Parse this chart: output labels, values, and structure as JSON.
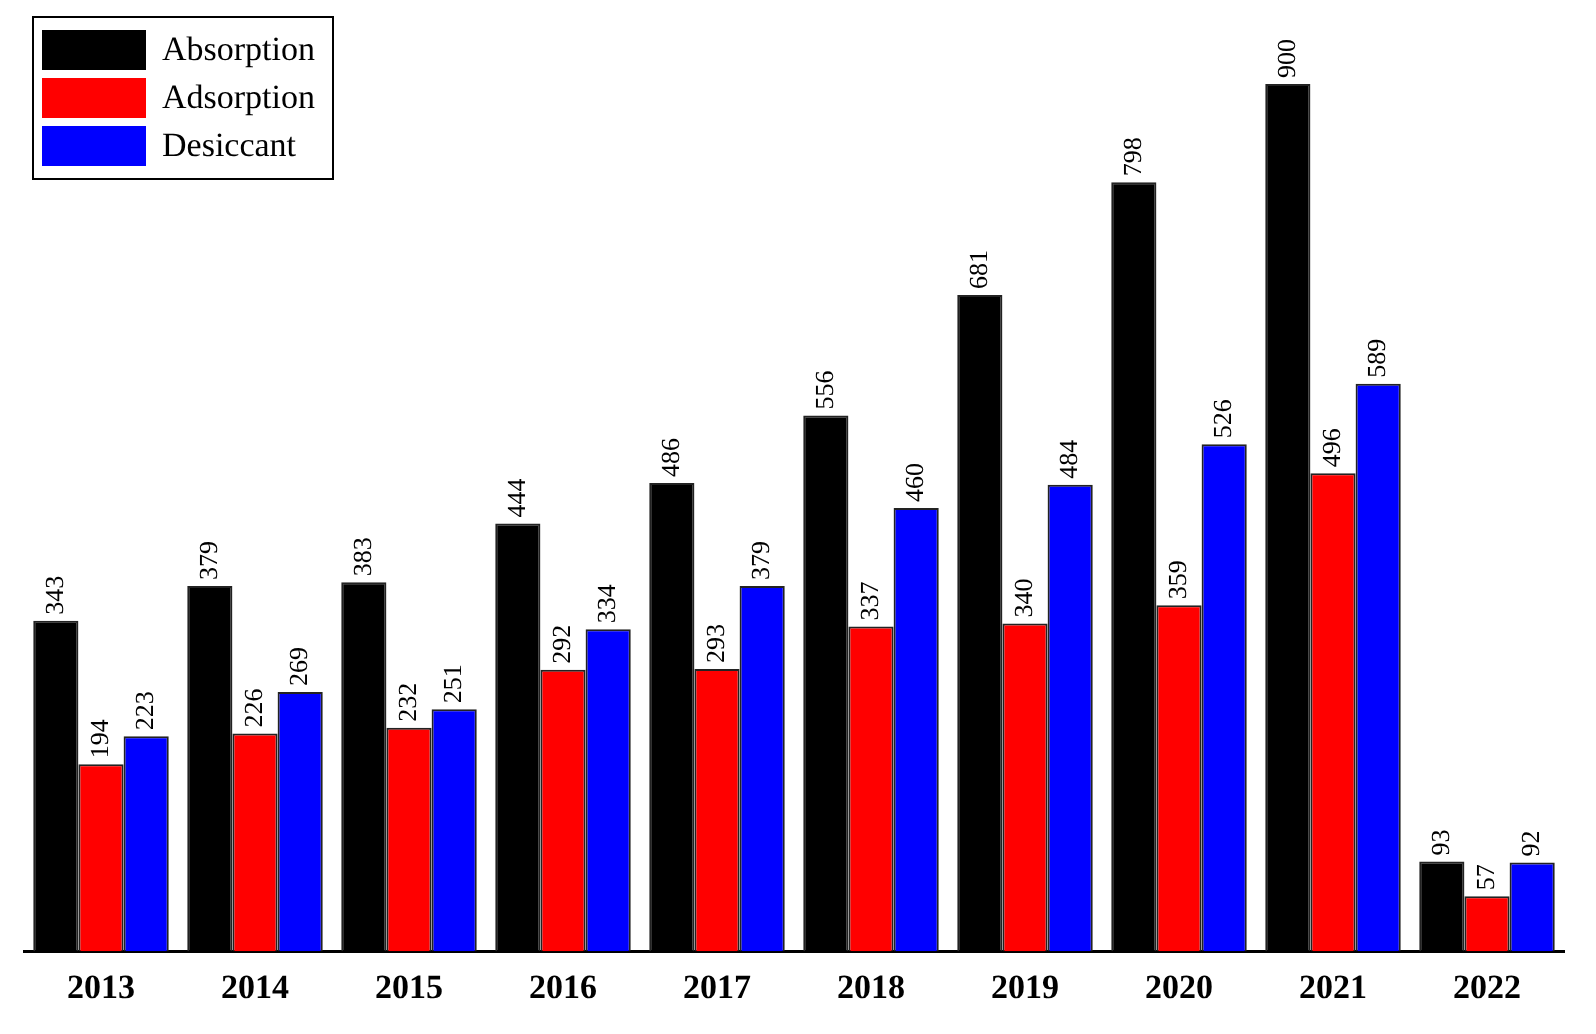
{
  "chart_data": {
    "type": "bar",
    "categories": [
      "2013",
      "2014",
      "2015",
      "2016",
      "2017",
      "2018",
      "2019",
      "2020",
      "2021",
      "2022"
    ],
    "series": [
      {
        "name": "Absorption",
        "color": "#000000",
        "values": [
          343,
          379,
          383,
          444,
          486,
          556,
          681,
          798,
          900,
          93
        ]
      },
      {
        "name": "Adsorption",
        "color": "#ff0000",
        "values": [
          194,
          226,
          232,
          292,
          293,
          337,
          340,
          359,
          496,
          57
        ]
      },
      {
        "name": "Desiccant",
        "color": "#0000ff",
        "values": [
          223,
          269,
          251,
          334,
          379,
          460,
          484,
          526,
          589,
          92
        ]
      }
    ],
    "data_labels": true,
    "legend": "top left",
    "grid": false,
    "tick_labels": "x"
  }
}
